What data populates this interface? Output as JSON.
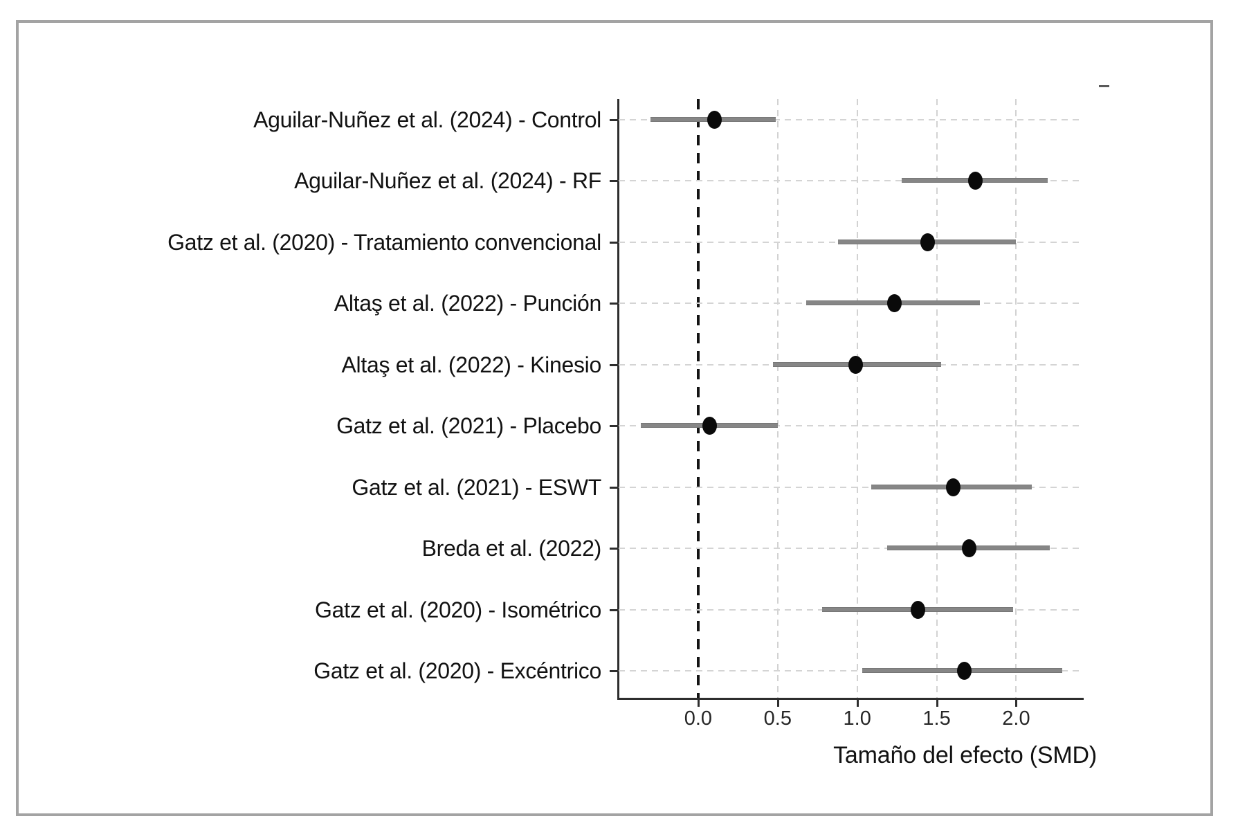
{
  "figure": {
    "background": "#ffffff",
    "frame_color": "#a3a3a3",
    "accent_black": "#0a0a0a",
    "bar_color": "#868686",
    "grid_color": "#d4d4d4"
  },
  "chart_data": {
    "type": "scatter",
    "variant": "forest-plot",
    "title": "",
    "xlabel": "Tamaño del efecto (SMD)",
    "ylabel": "",
    "xlim": [
      -0.5,
      2.42
    ],
    "x_ticks": [
      0.0,
      0.5,
      1.0,
      1.5,
      2.0
    ],
    "x_tick_labels": [
      "0.0",
      "0.5",
      "1.0",
      "1.5",
      "2.0"
    ],
    "zero_reference_line": 0.0,
    "grid": true,
    "legend": false,
    "studies": [
      {
        "label": "Aguilar-Nuñez et al. (2024) - Control",
        "smd": 0.1,
        "ci_low": -0.3,
        "ci_high": 0.49
      },
      {
        "label": "Aguilar-Nuñez et al. (2024) - RF",
        "smd": 1.74,
        "ci_low": 1.28,
        "ci_high": 2.2
      },
      {
        "label": "Gatz et al. (2020) - Tratamiento convencional",
        "smd": 1.44,
        "ci_low": 0.88,
        "ci_high": 2.0
      },
      {
        "label": "Altaş et al. (2022) - Punción",
        "smd": 1.23,
        "ci_low": 0.68,
        "ci_high": 1.77
      },
      {
        "label": "Altaş et al. (2022) - Kinesio",
        "smd": 0.99,
        "ci_low": 0.47,
        "ci_high": 1.53
      },
      {
        "label": "Gatz et al. (2021) - Placebo",
        "smd": 0.07,
        "ci_low": -0.36,
        "ci_high": 0.5
      },
      {
        "label": "Gatz et al. (2021) - ESWT",
        "smd": 1.6,
        "ci_low": 1.09,
        "ci_high": 2.1
      },
      {
        "label": "Breda et al. (2022)",
        "smd": 1.7,
        "ci_low": 1.19,
        "ci_high": 2.21
      },
      {
        "label": "Gatz et al. (2020) - Isométrico",
        "smd": 1.38,
        "ci_low": 0.78,
        "ci_high": 1.98
      },
      {
        "label": "Gatz et al. (2020) - Excéntrico",
        "smd": 1.67,
        "ci_low": 1.03,
        "ci_high": 2.29
      }
    ]
  }
}
